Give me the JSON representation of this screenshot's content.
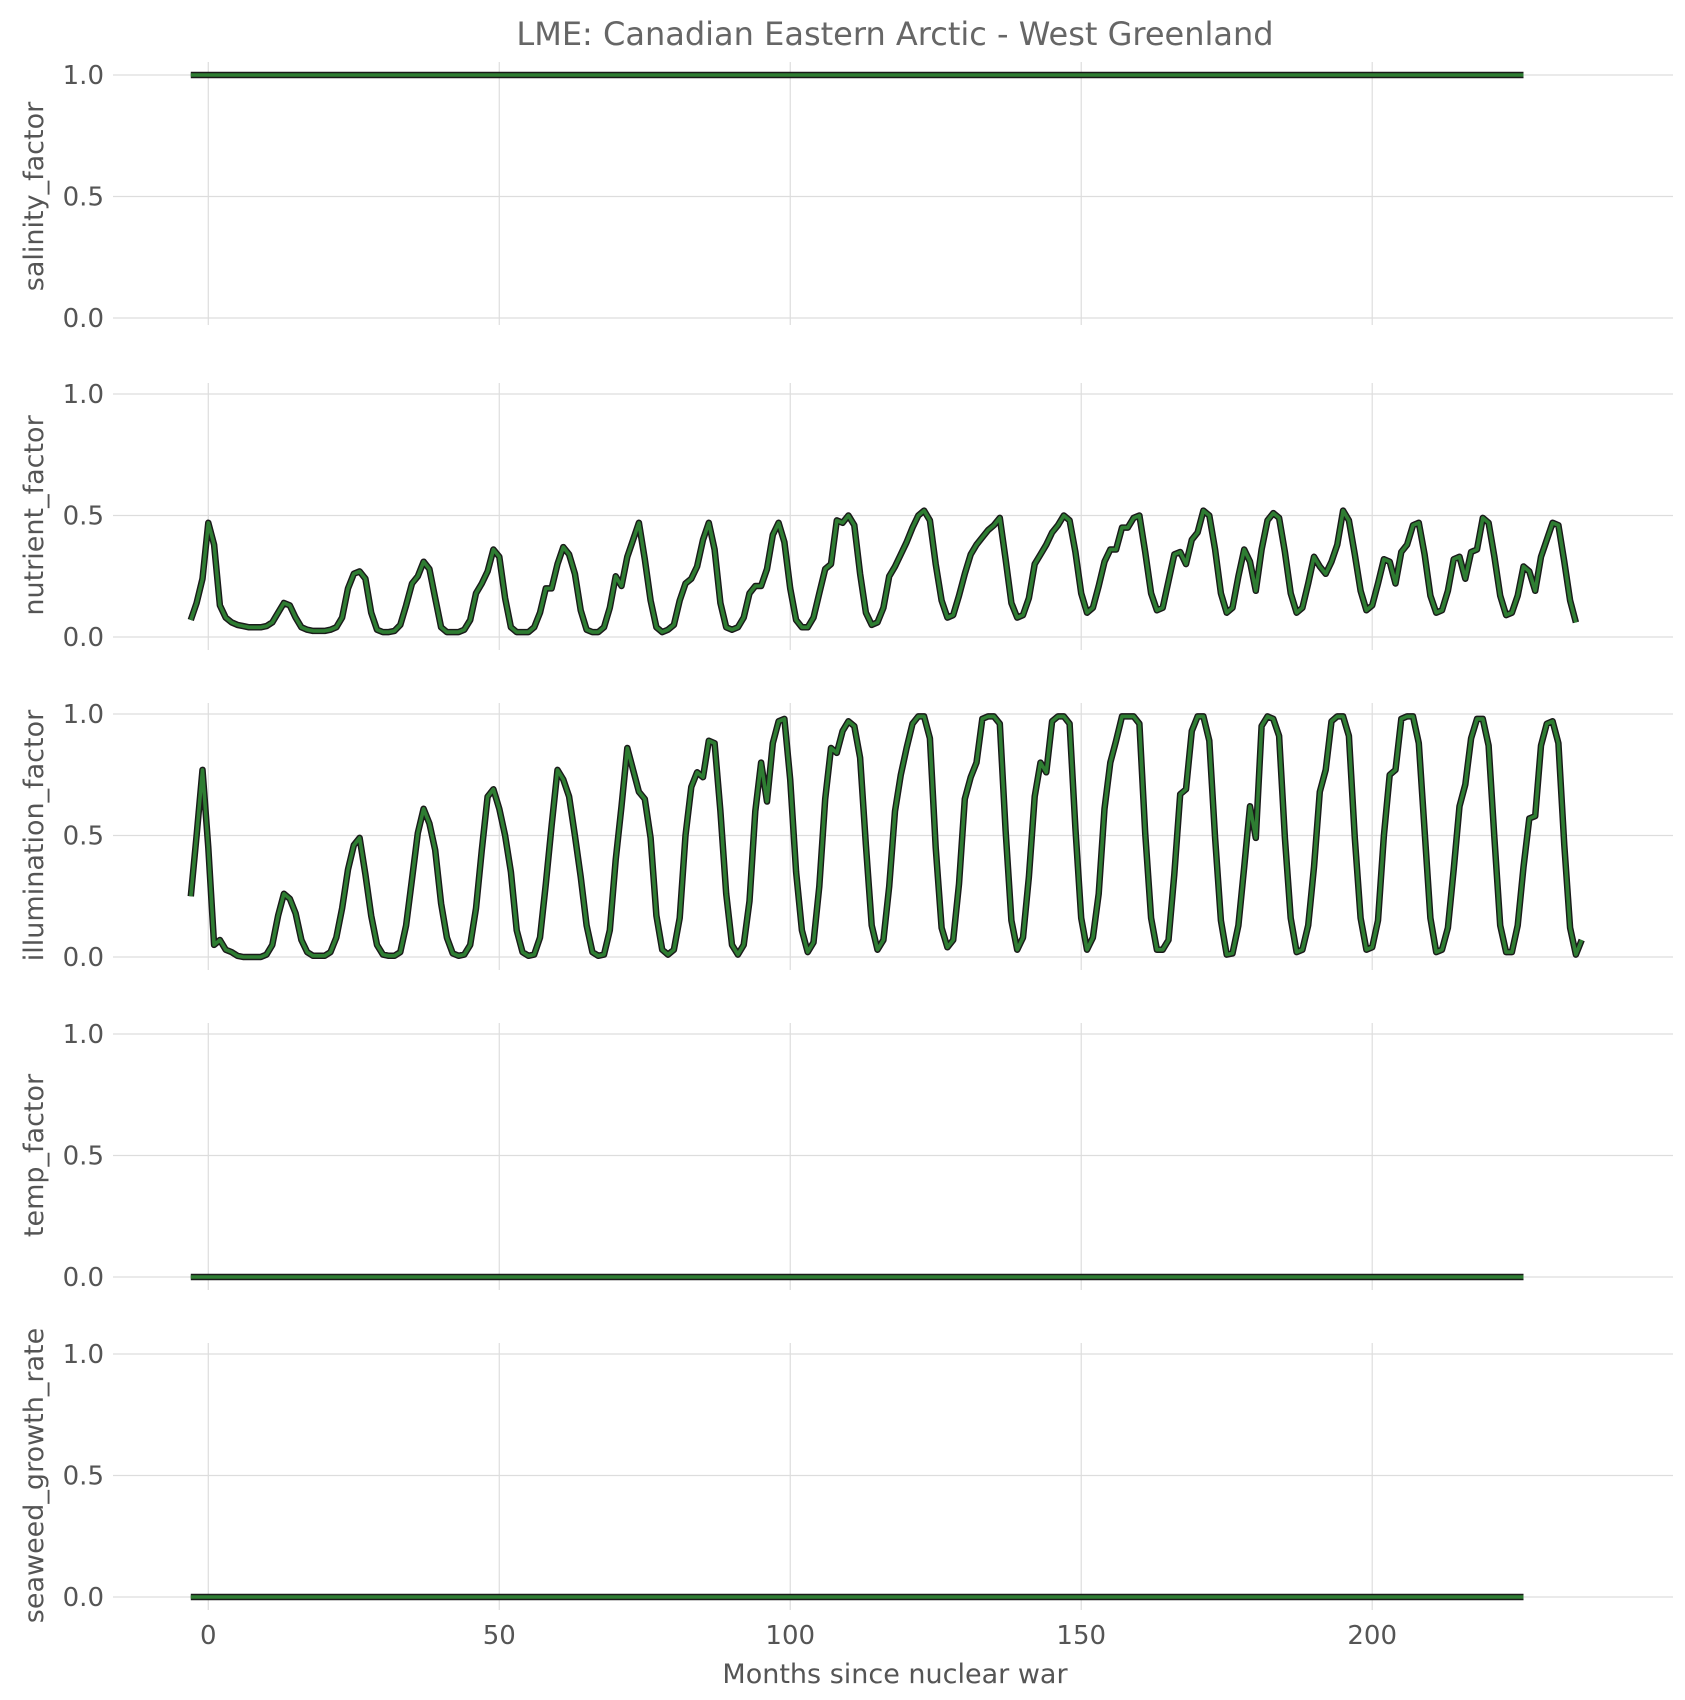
{
  "chart_data": {
    "type": "line",
    "title": "LME: Canadian Eastern Arctic - West Greenland",
    "xlabel": "Months since nuclear war",
    "xlim": [
      -4,
      240
    ],
    "xticks": [
      0,
      50,
      100,
      150,
      200
    ],
    "ylim": [
      0,
      1
    ],
    "yticks": [
      "0.0",
      "0.5",
      "1.0"
    ],
    "grid": true,
    "line_color": "#2e7d32",
    "outline_color": "#1a1a1a",
    "x_start": -3,
    "x_step": 1,
    "panels": [
      {
        "ylabel": "salinity_factor",
        "values": [
          1,
          1,
          1,
          1,
          1,
          1,
          1,
          1,
          1,
          1,
          1,
          1,
          1,
          1,
          1,
          1,
          1,
          1,
          1,
          1,
          1,
          1,
          1,
          1,
          1,
          1,
          1,
          1,
          1,
          1,
          1,
          1,
          1,
          1,
          1,
          1,
          1,
          1,
          1,
          1,
          1,
          1,
          1,
          1,
          1,
          1,
          1,
          1,
          1,
          1,
          1,
          1,
          1,
          1,
          1,
          1,
          1,
          1,
          1,
          1,
          1,
          1,
          1,
          1,
          1,
          1,
          1,
          1,
          1,
          1,
          1,
          1,
          1,
          1,
          1,
          1,
          1,
          1,
          1,
          1,
          1,
          1,
          1,
          1,
          1,
          1,
          1,
          1,
          1,
          1,
          1,
          1,
          1,
          1,
          1,
          1,
          1,
          1,
          1,
          1,
          1,
          1,
          1,
          1,
          1,
          1,
          1,
          1,
          1,
          1,
          1,
          1,
          1,
          1,
          1,
          1,
          1,
          1,
          1,
          1,
          1,
          1,
          1,
          1,
          1,
          1,
          1,
          1,
          1,
          1,
          1,
          1,
          1,
          1,
          1,
          1,
          1,
          1,
          1,
          1,
          1,
          1,
          1,
          1,
          1,
          1,
          1,
          1,
          1,
          1,
          1,
          1,
          1,
          1,
          1,
          1,
          1,
          1,
          1,
          1,
          1,
          1,
          1,
          1,
          1,
          1,
          1,
          1,
          1,
          1,
          1,
          1,
          1,
          1,
          1,
          1,
          1,
          1,
          1,
          1,
          1,
          1,
          1,
          1,
          1,
          1,
          1,
          1,
          1,
          1,
          1,
          1,
          1,
          1,
          1,
          1,
          1,
          1,
          1,
          1,
          1,
          1,
          1,
          1,
          1,
          1,
          1,
          1,
          1,
          1,
          1,
          1,
          1,
          1,
          1,
          1,
          1,
          1,
          1,
          1,
          1,
          1,
          1,
          1,
          1,
          1,
          1,
          1,
          1,
          1
        ]
      },
      {
        "ylabel": "nutrient_factor",
        "values": [
          0.07,
          0.14,
          0.24,
          0.47,
          0.38,
          0.13,
          0.08,
          0.06,
          0.05,
          0.045,
          0.04,
          0.04,
          0.04,
          0.045,
          0.06,
          0.1,
          0.14,
          0.13,
          0.08,
          0.04,
          0.03,
          0.025,
          0.025,
          0.025,
          0.03,
          0.04,
          0.08,
          0.2,
          0.26,
          0.27,
          0.24,
          0.1,
          0.03,
          0.02,
          0.02,
          0.025,
          0.05,
          0.13,
          0.22,
          0.25,
          0.31,
          0.28,
          0.16,
          0.04,
          0.02,
          0.02,
          0.02,
          0.03,
          0.07,
          0.18,
          0.22,
          0.27,
          0.36,
          0.33,
          0.16,
          0.04,
          0.02,
          0.02,
          0.02,
          0.04,
          0.1,
          0.2,
          0.2,
          0.3,
          0.37,
          0.34,
          0.26,
          0.11,
          0.03,
          0.02,
          0.02,
          0.04,
          0.12,
          0.25,
          0.21,
          0.33,
          0.4,
          0.47,
          0.32,
          0.15,
          0.04,
          0.02,
          0.03,
          0.05,
          0.15,
          0.22,
          0.24,
          0.29,
          0.4,
          0.47,
          0.36,
          0.14,
          0.04,
          0.03,
          0.04,
          0.08,
          0.18,
          0.21,
          0.21,
          0.28,
          0.42,
          0.47,
          0.39,
          0.2,
          0.07,
          0.04,
          0.04,
          0.08,
          0.18,
          0.28,
          0.3,
          0.48,
          0.47,
          0.5,
          0.46,
          0.26,
          0.1,
          0.05,
          0.06,
          0.12,
          0.25,
          0.29,
          0.34,
          0.39,
          0.45,
          0.5,
          0.52,
          0.48,
          0.3,
          0.15,
          0.08,
          0.09,
          0.17,
          0.26,
          0.34,
          0.38,
          0.41,
          0.44,
          0.46,
          0.49,
          0.32,
          0.14,
          0.08,
          0.09,
          0.16,
          0.3,
          0.34,
          0.38,
          0.43,
          0.46,
          0.5,
          0.48,
          0.35,
          0.18,
          0.1,
          0.12,
          0.21,
          0.31,
          0.36,
          0.36,
          0.45,
          0.45,
          0.49,
          0.5,
          0.35,
          0.18,
          0.11,
          0.12,
          0.23,
          0.34,
          0.35,
          0.3,
          0.4,
          0.43,
          0.52,
          0.5,
          0.36,
          0.18,
          0.1,
          0.12,
          0.25,
          0.36,
          0.31,
          0.19,
          0.36,
          0.48,
          0.51,
          0.49,
          0.35,
          0.18,
          0.1,
          0.12,
          0.22,
          0.33,
          0.29,
          0.26,
          0.31,
          0.38,
          0.52,
          0.48,
          0.34,
          0.19,
          0.11,
          0.13,
          0.22,
          0.32,
          0.31,
          0.22,
          0.35,
          0.38,
          0.46,
          0.47,
          0.34,
          0.17,
          0.1,
          0.11,
          0.19,
          0.32,
          0.33,
          0.24,
          0.35,
          0.36,
          0.49,
          0.47,
          0.33,
          0.17,
          0.09,
          0.1,
          0.17,
          0.29,
          0.27,
          0.19,
          0.33,
          0.4,
          0.47,
          0.46,
          0.31,
          0.15,
          0.06
        ]
      },
      {
        "ylabel": "illumination_factor",
        "values": [
          0.25,
          0.5,
          0.77,
          0.45,
          0.05,
          0.07,
          0.03,
          0.02,
          0.005,
          0.0,
          0.0,
          0.0,
          0.0,
          0.01,
          0.05,
          0.17,
          0.26,
          0.24,
          0.18,
          0.07,
          0.02,
          0.005,
          0.005,
          0.005,
          0.02,
          0.08,
          0.2,
          0.36,
          0.46,
          0.49,
          0.34,
          0.17,
          0.05,
          0.01,
          0.005,
          0.005,
          0.02,
          0.13,
          0.32,
          0.51,
          0.61,
          0.55,
          0.44,
          0.22,
          0.08,
          0.015,
          0.005,
          0.01,
          0.05,
          0.2,
          0.44,
          0.66,
          0.69,
          0.61,
          0.5,
          0.35,
          0.11,
          0.02,
          0.005,
          0.01,
          0.08,
          0.3,
          0.54,
          0.77,
          0.73,
          0.66,
          0.5,
          0.33,
          0.13,
          0.02,
          0.005,
          0.01,
          0.11,
          0.4,
          0.62,
          0.86,
          0.77,
          0.68,
          0.65,
          0.49,
          0.17,
          0.03,
          0.01,
          0.03,
          0.16,
          0.5,
          0.7,
          0.76,
          0.74,
          0.89,
          0.88,
          0.6,
          0.26,
          0.05,
          0.01,
          0.05,
          0.23,
          0.6,
          0.8,
          0.64,
          0.88,
          0.97,
          0.98,
          0.73,
          0.35,
          0.11,
          0.02,
          0.06,
          0.29,
          0.65,
          0.86,
          0.84,
          0.93,
          0.97,
          0.95,
          0.82,
          0.46,
          0.13,
          0.03,
          0.07,
          0.29,
          0.6,
          0.75,
          0.86,
          0.96,
          0.99,
          0.99,
          0.9,
          0.45,
          0.12,
          0.04,
          0.07,
          0.3,
          0.65,
          0.74,
          0.8,
          0.98,
          0.99,
          0.99,
          0.96,
          0.52,
          0.15,
          0.03,
          0.08,
          0.33,
          0.66,
          0.8,
          0.76,
          0.97,
          0.99,
          0.99,
          0.96,
          0.53,
          0.16,
          0.03,
          0.08,
          0.26,
          0.61,
          0.8,
          0.89,
          0.99,
          0.99,
          0.99,
          0.96,
          0.51,
          0.16,
          0.03,
          0.03,
          0.07,
          0.34,
          0.67,
          0.69,
          0.93,
          0.99,
          0.99,
          0.89,
          0.49,
          0.15,
          0.01,
          0.015,
          0.13,
          0.37,
          0.62,
          0.49,
          0.95,
          0.99,
          0.98,
          0.91,
          0.49,
          0.16,
          0.02,
          0.03,
          0.13,
          0.37,
          0.68,
          0.77,
          0.97,
          0.99,
          0.99,
          0.91,
          0.49,
          0.16,
          0.03,
          0.04,
          0.15,
          0.5,
          0.75,
          0.77,
          0.98,
          0.99,
          0.99,
          0.88,
          0.52,
          0.16,
          0.02,
          0.03,
          0.12,
          0.36,
          0.62,
          0.71,
          0.9,
          0.98,
          0.98,
          0.87,
          0.49,
          0.13,
          0.02,
          0.02,
          0.13,
          0.37,
          0.57,
          0.58,
          0.87,
          0.96,
          0.97,
          0.88,
          0.46,
          0.12,
          0.01,
          0.07
        ]
      },
      {
        "ylabel": "temp_factor",
        "values": [
          0,
          0,
          0,
          0,
          0,
          0,
          0,
          0,
          0,
          0,
          0,
          0,
          0,
          0,
          0,
          0,
          0,
          0,
          0,
          0,
          0,
          0,
          0,
          0,
          0,
          0,
          0,
          0,
          0,
          0,
          0,
          0,
          0,
          0,
          0,
          0,
          0,
          0,
          0,
          0,
          0,
          0,
          0,
          0,
          0,
          0,
          0,
          0,
          0,
          0,
          0,
          0,
          0,
          0,
          0,
          0,
          0,
          0,
          0,
          0,
          0,
          0,
          0,
          0,
          0,
          0,
          0,
          0,
          0,
          0,
          0,
          0,
          0,
          0,
          0,
          0,
          0,
          0,
          0,
          0,
          0,
          0,
          0,
          0,
          0,
          0,
          0,
          0,
          0,
          0,
          0,
          0,
          0,
          0,
          0,
          0,
          0,
          0,
          0,
          0,
          0,
          0,
          0,
          0,
          0,
          0,
          0,
          0,
          0,
          0,
          0,
          0,
          0,
          0,
          0,
          0,
          0,
          0,
          0,
          0,
          0,
          0,
          0,
          0,
          0,
          0,
          0,
          0,
          0,
          0,
          0,
          0,
          0,
          0,
          0,
          0,
          0,
          0,
          0,
          0,
          0,
          0,
          0,
          0,
          0,
          0,
          0,
          0,
          0,
          0,
          0,
          0,
          0,
          0,
          0,
          0,
          0,
          0,
          0,
          0,
          0,
          0,
          0,
          0,
          0,
          0,
          0,
          0,
          0,
          0,
          0,
          0,
          0,
          0,
          0,
          0,
          0,
          0,
          0,
          0,
          0,
          0,
          0,
          0,
          0,
          0,
          0,
          0,
          0,
          0,
          0,
          0,
          0,
          0,
          0,
          0,
          0,
          0,
          0,
          0,
          0,
          0,
          0,
          0,
          0,
          0,
          0,
          0,
          0,
          0,
          0,
          0,
          0,
          0,
          0,
          0,
          0,
          0,
          0,
          0,
          0,
          0,
          0,
          0,
          0,
          0,
          0,
          0,
          0,
          0
        ]
      },
      {
        "ylabel": "seaweed_growth_rate",
        "values": [
          0,
          0,
          0,
          0,
          0,
          0,
          0,
          0,
          0,
          0,
          0,
          0,
          0,
          0,
          0,
          0,
          0,
          0,
          0,
          0,
          0,
          0,
          0,
          0,
          0,
          0,
          0,
          0,
          0,
          0,
          0,
          0,
          0,
          0,
          0,
          0,
          0,
          0,
          0,
          0,
          0,
          0,
          0,
          0,
          0,
          0,
          0,
          0,
          0,
          0,
          0,
          0,
          0,
          0,
          0,
          0,
          0,
          0,
          0,
          0,
          0,
          0,
          0,
          0,
          0,
          0,
          0,
          0,
          0,
          0,
          0,
          0,
          0,
          0,
          0,
          0,
          0,
          0,
          0,
          0,
          0,
          0,
          0,
          0,
          0,
          0,
          0,
          0,
          0,
          0,
          0,
          0,
          0,
          0,
          0,
          0,
          0,
          0,
          0,
          0,
          0,
          0,
          0,
          0,
          0,
          0,
          0,
          0,
          0,
          0,
          0,
          0,
          0,
          0,
          0,
          0,
          0,
          0,
          0,
          0,
          0,
          0,
          0,
          0,
          0,
          0,
          0,
          0,
          0,
          0,
          0,
          0,
          0,
          0,
          0,
          0,
          0,
          0,
          0,
          0,
          0,
          0,
          0,
          0,
          0,
          0,
          0,
          0,
          0,
          0,
          0,
          0,
          0,
          0,
          0,
          0,
          0,
          0,
          0,
          0,
          0,
          0,
          0,
          0,
          0,
          0,
          0,
          0,
          0,
          0,
          0,
          0,
          0,
          0,
          0,
          0,
          0,
          0,
          0,
          0,
          0,
          0,
          0,
          0,
          0,
          0,
          0,
          0,
          0,
          0,
          0,
          0,
          0,
          0,
          0,
          0,
          0,
          0,
          0,
          0,
          0,
          0,
          0,
          0,
          0,
          0,
          0,
          0,
          0,
          0,
          0,
          0,
          0,
          0,
          0,
          0,
          0,
          0,
          0,
          0,
          0,
          0,
          0,
          0,
          0,
          0,
          0,
          0,
          0,
          0
        ]
      }
    ]
  }
}
